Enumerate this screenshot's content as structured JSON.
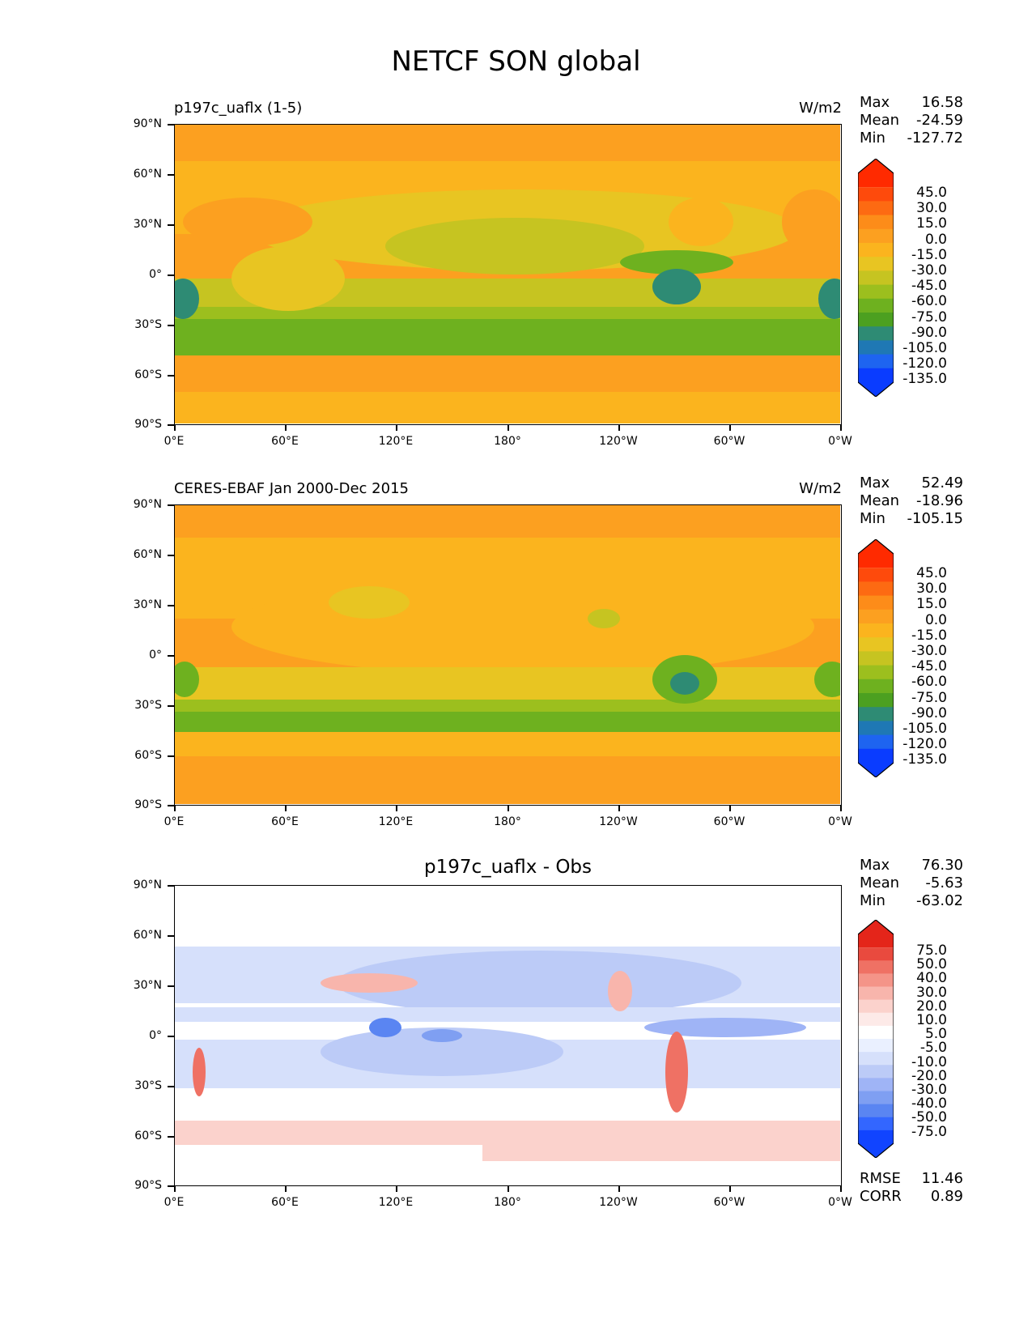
{
  "figure": {
    "title": "NETCF SON global"
  },
  "axes": {
    "yticks": [
      "90°N",
      "60°N",
      "30°N",
      "0°",
      "30°S",
      "60°S",
      "90°S"
    ],
    "xticks": [
      "0°E",
      "60°E",
      "120°E",
      "180°",
      "120°W",
      "60°W",
      "0°W"
    ]
  },
  "colors": {
    "seq": [
      "#0a3cff",
      "#1e64f0",
      "#1f78b4",
      "#2e8b74",
      "#4ca020",
      "#6eb11f",
      "#9cbf1e",
      "#c6c421",
      "#e8c522",
      "#fbb41e",
      "#fca020",
      "#fd8c19",
      "#fd6a12",
      "#fe4a0c",
      "#ff2a00"
    ],
    "div": [
      "#1144ff",
      "#3366ff",
      "#5a85f2",
      "#7f9ff2",
      "#9fb4f6",
      "#bccbf7",
      "#d6e0fb",
      "#eaf0ff",
      "#ffffff",
      "#fdeae8",
      "#fbd2cc",
      "#f8b5ac",
      "#f49488",
      "#ef7164",
      "#e94a3e",
      "#e4251a"
    ]
  },
  "panels": [
    {
      "title": "p197c_uaflx (1-5)",
      "units": "W/m2",
      "stats": {
        "max_label": "Max",
        "max": "16.58",
        "mean_label": "Mean",
        "mean": "-24.59",
        "min_label": "Min",
        "min": "-127.72"
      },
      "colorbar": {
        "levels": [
          "45.0",
          "30.0",
          "15.0",
          "0.0",
          "-15.0",
          "-30.0",
          "-45.0",
          "-60.0",
          "-75.0",
          "-90.0",
          "-105.0",
          "-120.0",
          "-135.0"
        ]
      }
    },
    {
      "title": "CERES-EBAF Jan 2000-Dec 2015",
      "units": "W/m2",
      "stats": {
        "max_label": "Max",
        "max": "52.49",
        "mean_label": "Mean",
        "mean": "-18.96",
        "min_label": "Min",
        "min": "-105.15"
      },
      "colorbar": {
        "levels": [
          "45.0",
          "30.0",
          "15.0",
          "0.0",
          "-15.0",
          "-30.0",
          "-45.0",
          "-60.0",
          "-75.0",
          "-90.0",
          "-105.0",
          "-120.0",
          "-135.0"
        ]
      }
    },
    {
      "title": "p197c_uaflx - Obs",
      "units": "",
      "stats": {
        "max_label": "Max",
        "max": "76.30",
        "mean_label": "Mean",
        "mean": "-5.63",
        "min_label": "Min",
        "min": "-63.02"
      },
      "colorbar": {
        "levels": [
          "75.0",
          "50.0",
          "40.0",
          "30.0",
          "20.0",
          "10.0",
          "5.0",
          "-5.0",
          "-10.0",
          "-20.0",
          "-30.0",
          "-40.0",
          "-50.0",
          "-75.0"
        ]
      },
      "extra": {
        "rmse_label": "RMSE",
        "rmse": "11.46",
        "corr_label": "CORR",
        "corr": "0.89"
      }
    }
  ]
}
